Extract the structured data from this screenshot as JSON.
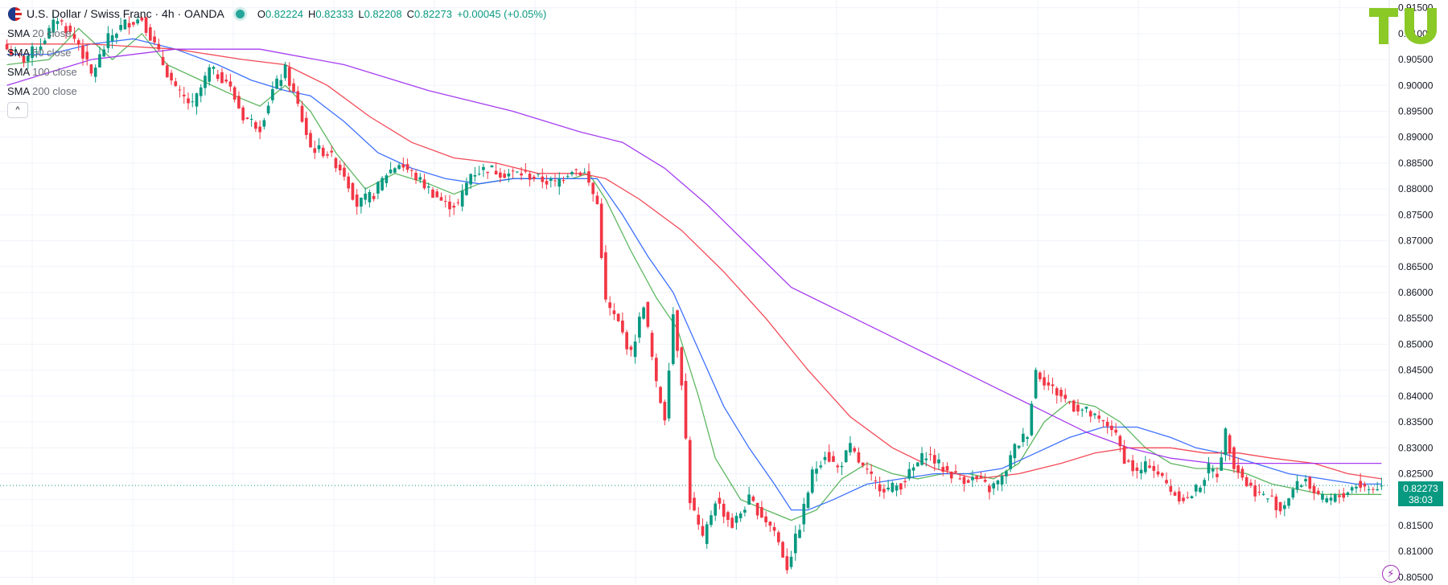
{
  "header": {
    "title": "U.S. Dollar / Swiss Franc · 4h · OANDA",
    "ohlc": {
      "o_label": "O",
      "o_value": "0.82224",
      "h_label": "H",
      "h_value": "0.82333",
      "l_label": "L",
      "l_value": "0.82208",
      "c_label": "C",
      "c_value": "0.82273",
      "change": "+0.00045 (+0.05%)"
    }
  },
  "indicators": [
    {
      "name": "SMA",
      "param": "20 close"
    },
    {
      "name": "SMA",
      "param": "50 close"
    },
    {
      "name": "SMA",
      "param": "100 close"
    },
    {
      "name": "SMA",
      "param": "200 close"
    }
  ],
  "collapse_symbol": "^",
  "logo_text": "TU",
  "price_label": {
    "price": "0.82273",
    "countdown": "38:03"
  },
  "bolt_symbol": "⚡",
  "colors": {
    "up": "#089981",
    "down": "#f23645",
    "sma20": "#4caf50",
    "sma50": "#2962ff",
    "sma100": "#f23645",
    "sma200": "#9c27f0",
    "logo": "#8ac926"
  },
  "chart_data": {
    "type": "candlestick",
    "symbol": "USDCHF",
    "interval": "4h",
    "ylim": [
      0.8035,
      0.9165
    ],
    "y_ticks": [
      0.805,
      0.81,
      0.815,
      0.82,
      0.825,
      0.83,
      0.835,
      0.84,
      0.845,
      0.85,
      0.855,
      0.86,
      0.865,
      0.87,
      0.875,
      0.88,
      0.885,
      0.89,
      0.895,
      0.9,
      0.905,
      0.91,
      0.915
    ],
    "y_tick_labels": [
      "0.80500",
      "0.81000",
      "0.81500",
      "0.82000",
      "0.82500",
      "0.83000",
      "0.83500",
      "0.84000",
      "0.84500",
      "0.85000",
      "0.85500",
      "0.86000",
      "0.86500",
      "0.87000",
      "0.87500",
      "0.88000",
      "0.88500",
      "0.89000",
      "0.89500",
      "0.90000",
      "0.90500",
      "0.91000",
      "0.91500"
    ],
    "current_price": 0.82273,
    "grid": true,
    "close_path": [
      [
        0,
        0.907
      ],
      [
        4,
        0.905
      ],
      [
        8,
        0.908
      ],
      [
        12,
        0.913
      ],
      [
        17,
        0.908
      ],
      [
        20,
        0.902
      ],
      [
        24,
        0.909
      ],
      [
        28,
        0.912
      ],
      [
        32,
        0.913
      ],
      [
        36,
        0.906
      ],
      [
        40,
        0.899
      ],
      [
        44,
        0.896
      ],
      [
        48,
        0.903
      ],
      [
        52,
        0.901
      ],
      [
        56,
        0.894
      ],
      [
        60,
        0.892
      ],
      [
        63,
        0.899
      ],
      [
        66,
        0.903
      ],
      [
        69,
        0.896
      ],
      [
        72,
        0.888
      ],
      [
        76,
        0.887
      ],
      [
        80,
        0.883
      ],
      [
        83,
        0.877
      ],
      [
        87,
        0.879
      ],
      [
        90,
        0.883
      ],
      [
        93,
        0.885
      ],
      [
        96,
        0.883
      ],
      [
        100,
        0.88
      ],
      [
        104,
        0.877
      ],
      [
        107,
        0.877
      ],
      [
        110,
        0.883
      ],
      [
        114,
        0.884
      ],
      [
        118,
        0.883
      ],
      [
        122,
        0.883
      ],
      [
        126,
        0.882
      ],
      [
        130,
        0.881
      ],
      [
        134,
        0.884
      ],
      [
        137,
        0.883
      ],
      [
        140,
        0.877
      ],
      [
        142,
        0.858
      ],
      [
        145,
        0.854
      ],
      [
        148,
        0.848
      ],
      [
        151,
        0.858
      ],
      [
        154,
        0.842
      ],
      [
        156,
        0.836
      ],
      [
        158,
        0.856
      ],
      [
        160,
        0.843
      ],
      [
        162,
        0.82
      ],
      [
        165,
        0.812
      ],
      [
        168,
        0.82
      ],
      [
        172,
        0.815
      ],
      [
        176,
        0.82
      ],
      [
        179,
        0.817
      ],
      [
        182,
        0.814
      ],
      [
        185,
        0.807
      ],
      [
        188,
        0.815
      ],
      [
        191,
        0.825
      ],
      [
        194,
        0.829
      ],
      [
        197,
        0.826
      ],
      [
        200,
        0.83
      ],
      [
        203,
        0.826
      ],
      [
        206,
        0.823
      ],
      [
        209,
        0.822
      ],
      [
        212,
        0.823
      ],
      [
        215,
        0.826
      ],
      [
        218,
        0.829
      ],
      [
        222,
        0.826
      ],
      [
        226,
        0.824
      ],
      [
        230,
        0.824
      ],
      [
        233,
        0.822
      ],
      [
        236,
        0.824
      ],
      [
        239,
        0.83
      ],
      [
        242,
        0.833
      ],
      [
        244,
        0.845
      ],
      [
        247,
        0.842
      ],
      [
        250,
        0.84
      ],
      [
        253,
        0.838
      ],
      [
        256,
        0.837
      ],
      [
        259,
        0.835
      ],
      [
        262,
        0.834
      ],
      [
        265,
        0.828
      ],
      [
        268,
        0.825
      ],
      [
        271,
        0.827
      ],
      [
        274,
        0.824
      ],
      [
        277,
        0.821
      ],
      [
        280,
        0.82
      ],
      [
        283,
        0.823
      ],
      [
        285,
        0.826
      ],
      [
        287,
        0.825
      ],
      [
        289,
        0.833
      ],
      [
        291,
        0.827
      ],
      [
        294,
        0.823
      ],
      [
        297,
        0.821
      ],
      [
        300,
        0.82
      ],
      [
        302,
        0.818
      ],
      [
        305,
        0.822
      ],
      [
        308,
        0.824
      ],
      [
        311,
        0.82
      ],
      [
        314,
        0.82
      ],
      [
        317,
        0.821
      ],
      [
        320,
        0.823
      ],
      [
        323,
        0.822
      ],
      [
        326,
        0.8227
      ]
    ],
    "series": [
      {
        "name": "SMA 20 close",
        "points": [
          [
            0,
            0.904
          ],
          [
            10,
            0.905
          ],
          [
            17,
            0.911
          ],
          [
            25,
            0.905
          ],
          [
            32,
            0.91
          ],
          [
            38,
            0.904
          ],
          [
            46,
            0.901
          ],
          [
            54,
            0.898
          ],
          [
            60,
            0.896
          ],
          [
            66,
            0.9
          ],
          [
            72,
            0.895
          ],
          [
            78,
            0.887
          ],
          [
            85,
            0.88
          ],
          [
            92,
            0.883
          ],
          [
            100,
            0.881
          ],
          [
            106,
            0.879
          ],
          [
            112,
            0.881
          ],
          [
            120,
            0.882
          ],
          [
            128,
            0.882
          ],
          [
            134,
            0.882
          ],
          [
            138,
            0.883
          ],
          [
            142,
            0.878
          ],
          [
            148,
            0.868
          ],
          [
            154,
            0.859
          ],
          [
            159,
            0.853
          ],
          [
            164,
            0.84
          ],
          [
            168,
            0.828
          ],
          [
            174,
            0.82
          ],
          [
            180,
            0.818
          ],
          [
            186,
            0.816
          ],
          [
            192,
            0.818
          ],
          [
            198,
            0.824
          ],
          [
            204,
            0.827
          ],
          [
            210,
            0.825
          ],
          [
            216,
            0.824
          ],
          [
            222,
            0.825
          ],
          [
            228,
            0.825
          ],
          [
            234,
            0.824
          ],
          [
            240,
            0.827
          ],
          [
            246,
            0.835
          ],
          [
            252,
            0.839
          ],
          [
            258,
            0.838
          ],
          [
            264,
            0.835
          ],
          [
            270,
            0.83
          ],
          [
            276,
            0.827
          ],
          [
            282,
            0.826
          ],
          [
            288,
            0.826
          ],
          [
            294,
            0.825
          ],
          [
            300,
            0.823
          ],
          [
            306,
            0.822
          ],
          [
            312,
            0.821
          ],
          [
            318,
            0.821
          ],
          [
            326,
            0.821
          ]
        ]
      },
      {
        "name": "SMA 50 close",
        "points": [
          [
            0,
            0.906
          ],
          [
            10,
            0.906
          ],
          [
            20,
            0.908
          ],
          [
            30,
            0.909
          ],
          [
            40,
            0.907
          ],
          [
            50,
            0.904
          ],
          [
            58,
            0.901
          ],
          [
            66,
            0.899
          ],
          [
            72,
            0.898
          ],
          [
            80,
            0.893
          ],
          [
            88,
            0.887
          ],
          [
            96,
            0.884
          ],
          [
            104,
            0.882
          ],
          [
            112,
            0.881
          ],
          [
            120,
            0.882
          ],
          [
            128,
            0.882
          ],
          [
            136,
            0.882
          ],
          [
            140,
            0.882
          ],
          [
            146,
            0.875
          ],
          [
            152,
            0.867
          ],
          [
            158,
            0.86
          ],
          [
            164,
            0.849
          ],
          [
            170,
            0.838
          ],
          [
            176,
            0.83
          ],
          [
            182,
            0.823
          ],
          [
            186,
            0.818
          ],
          [
            190,
            0.818
          ],
          [
            196,
            0.82
          ],
          [
            204,
            0.823
          ],
          [
            212,
            0.824
          ],
          [
            220,
            0.825
          ],
          [
            228,
            0.825
          ],
          [
            236,
            0.826
          ],
          [
            244,
            0.829
          ],
          [
            252,
            0.832
          ],
          [
            260,
            0.834
          ],
          [
            268,
            0.834
          ],
          [
            276,
            0.832
          ],
          [
            282,
            0.83
          ],
          [
            288,
            0.829
          ],
          [
            296,
            0.827
          ],
          [
            304,
            0.825
          ],
          [
            312,
            0.824
          ],
          [
            320,
            0.823
          ],
          [
            326,
            0.823
          ]
        ]
      },
      {
        "name": "SMA 100 close",
        "points": [
          [
            0,
            0.908
          ],
          [
            20,
            0.908
          ],
          [
            40,
            0.907
          ],
          [
            56,
            0.905
          ],
          [
            66,
            0.904
          ],
          [
            76,
            0.9
          ],
          [
            86,
            0.894
          ],
          [
            96,
            0.889
          ],
          [
            106,
            0.886
          ],
          [
            116,
            0.885
          ],
          [
            126,
            0.883
          ],
          [
            136,
            0.883
          ],
          [
            142,
            0.882
          ],
          [
            150,
            0.878
          ],
          [
            160,
            0.872
          ],
          [
            170,
            0.864
          ],
          [
            180,
            0.855
          ],
          [
            190,
            0.845
          ],
          [
            200,
            0.836
          ],
          [
            210,
            0.83
          ],
          [
            220,
            0.826
          ],
          [
            230,
            0.824
          ],
          [
            240,
            0.825
          ],
          [
            250,
            0.827
          ],
          [
            258,
            0.829
          ],
          [
            266,
            0.83
          ],
          [
            276,
            0.83
          ],
          [
            284,
            0.829
          ],
          [
            292,
            0.829
          ],
          [
            300,
            0.828
          ],
          [
            310,
            0.827
          ],
          [
            318,
            0.825
          ],
          [
            326,
            0.824
          ]
        ]
      },
      {
        "name": "SMA 200 close",
        "points": [
          [
            0,
            0.9
          ],
          [
            20,
            0.905
          ],
          [
            40,
            0.907
          ],
          [
            60,
            0.907
          ],
          [
            80,
            0.904
          ],
          [
            100,
            0.899
          ],
          [
            120,
            0.895
          ],
          [
            136,
            0.891
          ],
          [
            146,
            0.889
          ],
          [
            156,
            0.884
          ],
          [
            166,
            0.877
          ],
          [
            176,
            0.869
          ],
          [
            186,
            0.861
          ],
          [
            196,
            0.857
          ],
          [
            206,
            0.853
          ],
          [
            216,
            0.849
          ],
          [
            226,
            0.845
          ],
          [
            236,
            0.841
          ],
          [
            246,
            0.837
          ],
          [
            256,
            0.833
          ],
          [
            266,
            0.83
          ],
          [
            276,
            0.828
          ],
          [
            286,
            0.827
          ],
          [
            296,
            0.827
          ],
          [
            306,
            0.827
          ],
          [
            316,
            0.827
          ],
          [
            326,
            0.827
          ]
        ]
      }
    ]
  }
}
